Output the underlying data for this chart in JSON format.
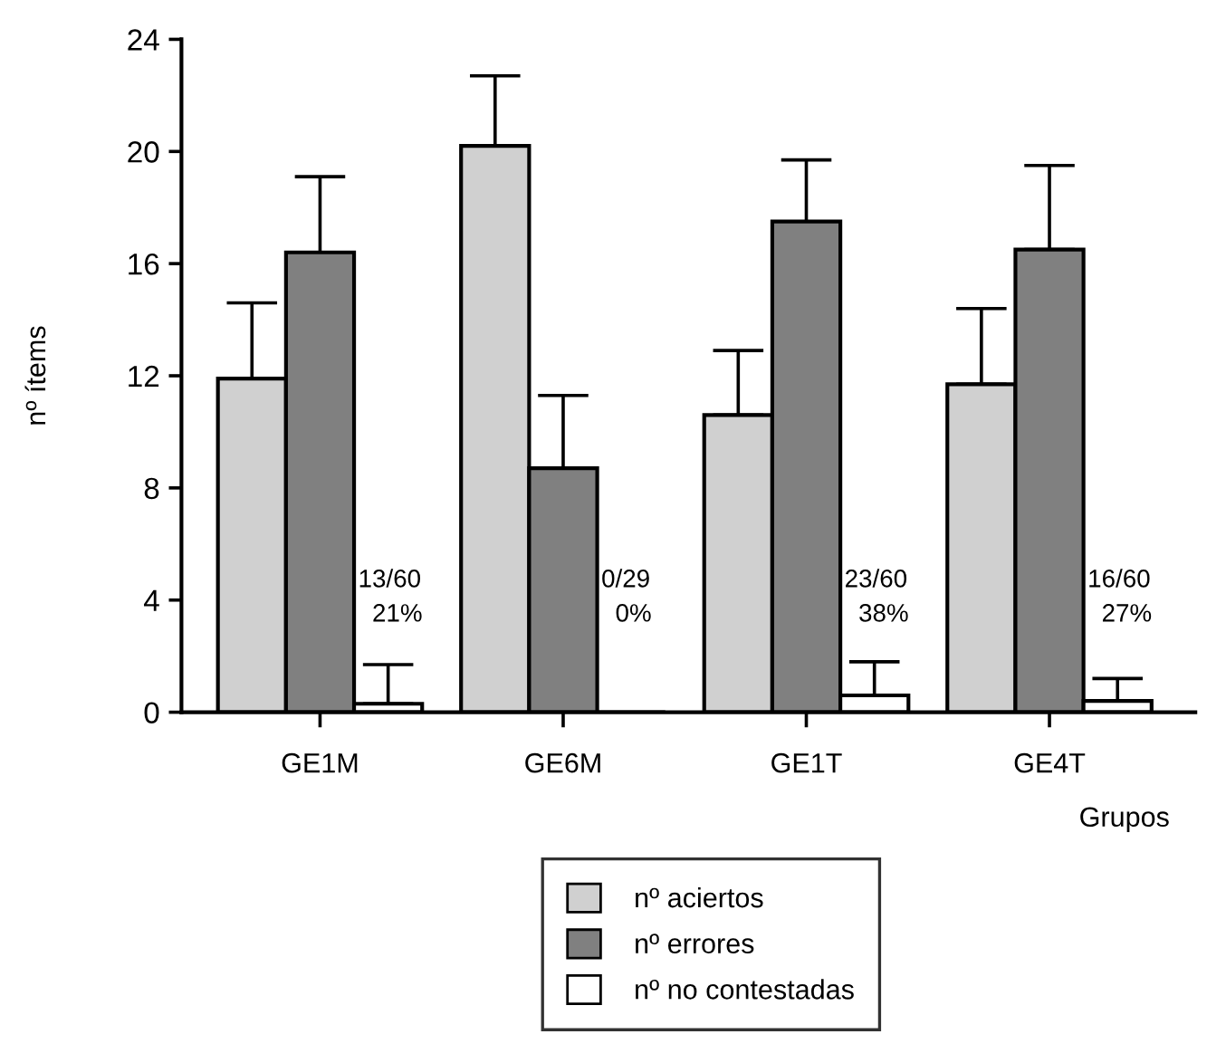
{
  "chart_data": {
    "type": "bar",
    "xlabel": "Grupos",
    "ylabel": "nº ítems",
    "categories": [
      "GE1M",
      "GE6M",
      "GE1T",
      "GE4T"
    ],
    "series": [
      {
        "name": "nº aciertos",
        "color": "#d0d0d0",
        "values": [
          11.9,
          20.2,
          10.6,
          11.7
        ],
        "errors": [
          [
            11.9,
            14.6
          ],
          [
            20.2,
            22.7
          ],
          [
            10.6,
            12.9
          ],
          [
            11.7,
            14.4
          ]
        ]
      },
      {
        "name": "nº errores",
        "color": "#808080",
        "values": [
          16.4,
          8.7,
          17.5,
          16.5
        ],
        "errors": [
          [
            16.4,
            19.1
          ],
          [
            8.7,
            11.3
          ],
          [
            17.5,
            19.7
          ],
          [
            16.5,
            19.5
          ]
        ]
      },
      {
        "name": "nº no contestadas",
        "color": "#ffffff",
        "values": [
          0.3,
          0,
          0.6,
          0.4
        ],
        "errors": [
          [
            0.3,
            1.7
          ],
          null,
          [
            0.6,
            1.8
          ],
          [
            0.4,
            1.2
          ]
        ]
      }
    ],
    "annotations": [
      "13/60\n  21%",
      "0/29\n  0%",
      "23/60\n  38%",
      "16/60\n  27%"
    ],
    "ylim": [
      0,
      24
    ],
    "yticks": [
      0,
      4,
      8,
      12,
      16,
      20,
      24
    ],
    "grid": false,
    "legend": "bottom"
  }
}
